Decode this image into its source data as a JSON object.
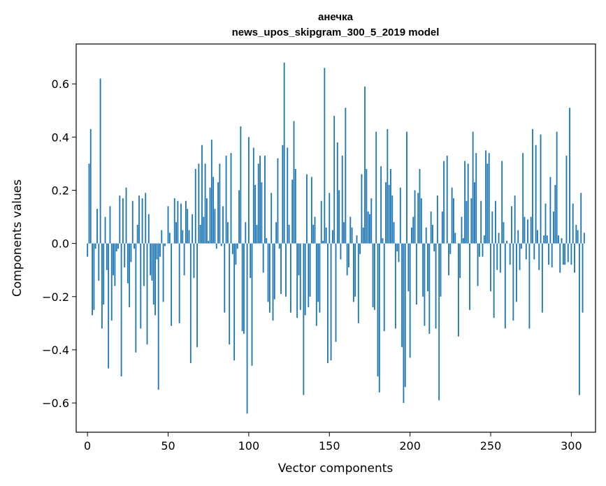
{
  "chart_data": {
    "type": "bar",
    "title_line1": "анечка",
    "title_line2": "news_upos_skipgram_300_5_2019 model",
    "xlabel": "Vector components",
    "ylabel": "Components values",
    "xlim": [
      -7,
      315
    ],
    "ylim": [
      -0.71,
      0.75
    ],
    "xticks": [
      0,
      50,
      100,
      150,
      200,
      250,
      300
    ],
    "xtick_labels": [
      "0",
      "50",
      "100",
      "150",
      "200",
      "250",
      "300"
    ],
    "yticks": [
      -0.6,
      -0.4,
      -0.2,
      0.0,
      0.2,
      0.4,
      0.6
    ],
    "ytick_labels": [
      "−0.6",
      "−0.4",
      "−0.2",
      "0.0",
      "0.2",
      "0.4",
      "0.6"
    ],
    "bar_color": "#1f77b4",
    "values": [
      -0.05,
      0.3,
      0.43,
      -0.27,
      -0.25,
      -0.02,
      0.13,
      -0.14,
      0.62,
      -0.32,
      -0.23,
      0.1,
      -0.1,
      -0.47,
      0.14,
      -0.29,
      -0.12,
      -0.16,
      -0.03,
      -0.02,
      0.18,
      -0.5,
      0.17,
      -0.09,
      0.21,
      -0.15,
      -0.24,
      -0.07,
      0.16,
      -0.02,
      -0.41,
      0.07,
      0.18,
      -0.32,
      0.17,
      -0.16,
      0.19,
      -0.38,
      0.11,
      -0.12,
      -0.14,
      -0.23,
      -0.27,
      -0.06,
      -0.55,
      -0.05,
      0.05,
      -0.22,
      -0.01,
      0.0,
      0.14,
      0.04,
      -0.31,
      0.0,
      0.17,
      0.08,
      0.16,
      -0.3,
      0.15,
      0.05,
      -0.12,
      0.16,
      0.13,
      0.05,
      -0.45,
      0.11,
      -0.13,
      0.28,
      -0.39,
      0.3,
      0.07,
      0.37,
      0.1,
      0.3,
      0.17,
      0.01,
      0.21,
      0.39,
      0.25,
      0.13,
      -0.02,
      0.23,
      0.3,
      -0.01,
      0.14,
      -0.26,
      0.33,
      0.08,
      -0.38,
      0.34,
      -0.04,
      -0.44,
      -0.08,
      -0.02,
      0.2,
      0.44,
      -0.33,
      -0.34,
      0.08,
      -0.64,
      0.4,
      -0.13,
      -0.46,
      0.36,
      0.22,
      0.07,
      0.3,
      0.33,
      0.23,
      -0.11,
      0.33,
      0.02,
      -0.22,
      -0.26,
      0.19,
      -0.29,
      -0.21,
      0.08,
      0.32,
      -0.02,
      -0.19,
      0.37,
      0.68,
      -0.2,
      0.36,
      0.07,
      -0.26,
      0.24,
      0.46,
      0.28,
      -0.28,
      -0.12,
      -0.25,
      0.0,
      -0.57,
      -0.27,
      0.26,
      -0.24,
      -0.2,
      0.25,
      0.07,
      0.1,
      -0.31,
      -0.22,
      -0.26,
      0.16,
      0.01,
      0.66,
      0.06,
      -0.45,
      0.19,
      -0.44,
      0.05,
      0.48,
      -0.37,
      0.38,
      0.2,
      -0.06,
      0.33,
      0.08,
      0.51,
      -0.12,
      -0.09,
      0.1,
      0.06,
      -0.22,
      -0.2,
      0.03,
      -0.3,
      -0.04,
      0.26,
      0.06,
      0.59,
      0.28,
      0.12,
      0.11,
      0.17,
      -0.24,
      -0.25,
      0.42,
      -0.5,
      -0.56,
      0.29,
      0.02,
      -0.33,
      0.23,
      0.43,
      0.22,
      0.28,
      0.18,
      0.08,
      -0.32,
      -0.03,
      -0.07,
      0.21,
      -0.39,
      -0.6,
      -0.54,
      0.42,
      -0.18,
      -0.43,
      0.06,
      0.1,
      0.2,
      -0.23,
      0.19,
      0.28,
      0.17,
      -0.2,
      -0.31,
      0.06,
      -0.18,
      -0.34,
      0.12,
      0.07,
      -0.03,
      -0.32,
      0.18,
      -0.59,
      -0.2,
      0.12,
      0.31,
      0.0,
      0.33,
      -0.12,
      -0.04,
      0.21,
      0.17,
      0.04,
      0.0,
      -0.35,
      -0.13,
      0.1,
      0.02,
      0.31,
      0.16,
      0.3,
      -0.25,
      0.17,
      0.42,
      0.23,
      0.34,
      -0.16,
      -0.05,
      0.16,
      -0.05,
      0.03,
      0.35,
      0.3,
      0.34,
      -0.18,
      0.12,
      -0.28,
      0.16,
      -0.1,
      0.04,
      -0.11,
      0.31,
      0.08,
      -0.32,
      0.01,
      0.0,
      -0.08,
      0.14,
      -0.29,
      0.18,
      -0.22,
      0.05,
      -0.1,
      -0.02,
      0.34,
      0.1,
      -0.06,
      0.09,
      -0.32,
      0.1,
      0.43,
      -0.06,
      0.37,
      0.05,
      -0.1,
      0.41,
      -0.26,
      0.03,
      0.15,
      0.03,
      -0.08,
      0.25,
      -0.09,
      0.12,
      0.22,
      0.42,
      0.03,
      -0.11,
      0.02,
      -0.08,
      -0.08,
      0.33,
      -0.07,
      0.51,
      -0.08,
      0.15,
      -0.11,
      0.07,
      0.05,
      -0.57,
      0.19,
      -0.26,
      0.04
    ]
  }
}
